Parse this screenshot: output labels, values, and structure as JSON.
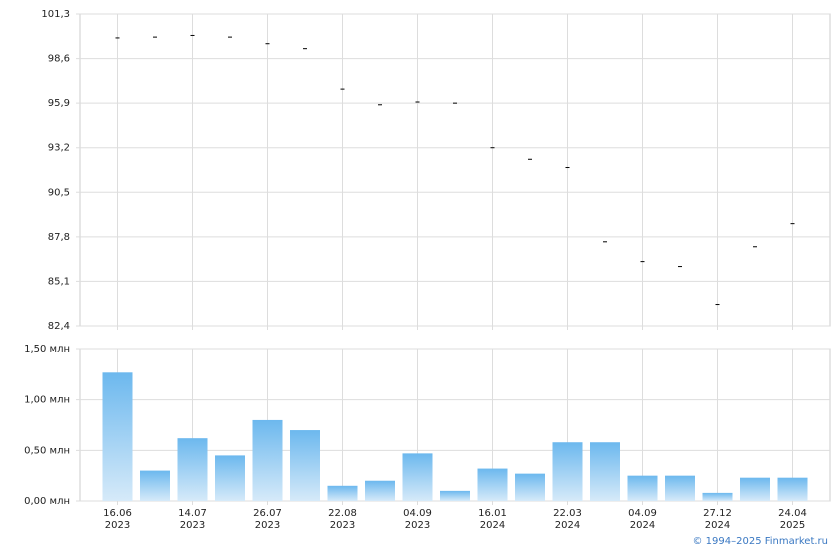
{
  "chart_data": [
    {
      "type": "scatter",
      "color": "#000000",
      "values": [
        99.85,
        99.9,
        100.0,
        99.9,
        99.5,
        99.2,
        96.75,
        95.8,
        95.97,
        95.9,
        93.2,
        92.5,
        92.0,
        87.5,
        86.3,
        86.0,
        83.7,
        87.2,
        88.6
      ],
      "ylim": [
        82.4,
        101.3
      ],
      "yticks": [
        {
          "value": 82.4,
          "label": "82,4"
        },
        {
          "value": 85.1,
          "label": "85,1"
        },
        {
          "value": 87.8,
          "label": "87,8"
        },
        {
          "value": 90.5,
          "label": "90,5"
        },
        {
          "value": 93.2,
          "label": "93,2"
        },
        {
          "value": 95.9,
          "label": "95,9"
        },
        {
          "value": 98.6,
          "label": "98,6"
        },
        {
          "value": 101.3,
          "label": "101,3"
        }
      ],
      "grid": true
    },
    {
      "type": "bar",
      "color": "#6cb8ee",
      "categories": [
        "16.06\n2023",
        null,
        "14.07\n2023",
        null,
        "26.07\n2023",
        null,
        "22.08\n2023",
        null,
        "04.09\n2023",
        null,
        "16.01\n2024",
        null,
        "22.03\n2024",
        null,
        "04.09\n2024",
        null,
        "27.12\n2024",
        null,
        "24.04\n2025"
      ],
      "values": [
        1.27,
        0.3,
        0.62,
        0.45,
        0.8,
        0.7,
        0.15,
        0.2,
        0.47,
        0.1,
        0.32,
        0.27,
        0.58,
        0.58,
        0.25,
        0.25,
        0.08,
        0.23,
        0.23
      ],
      "ylim": [
        0,
        1.5
      ],
      "yticks": [
        {
          "value": 0,
          "label": "0,00 млн"
        },
        {
          "value": 0.5,
          "label": "0,50 млн"
        },
        {
          "value": 1.0,
          "label": "1,00 млн"
        },
        {
          "value": 1.5,
          "label": "1,50 млн"
        }
      ],
      "grid": true
    }
  ],
  "footer": {
    "source": "© 1994–2025 Finmarket.ru"
  }
}
